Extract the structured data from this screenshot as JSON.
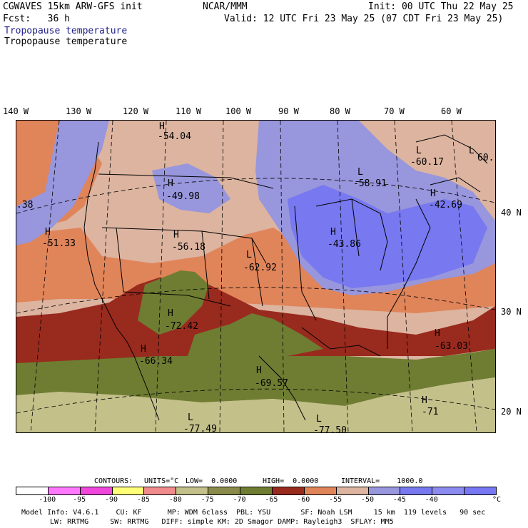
{
  "header": {
    "model": "CGWAVES 15km ARW-GFS init",
    "org": "NCAR/MMM",
    "init": "Init: 00 UTC Thu 22 May 25",
    "fcst": "Fcst:   36 h",
    "valid": "Valid: 12 UTC Fri 23 May 25 (07 CDT Fri 23 May 25)",
    "field_colored": "Tropopause temperature",
    "field_contour": "Tropopause temperature"
  },
  "lon_labels": [
    "140 W",
    "130 W",
    "120 W",
    "110 W",
    "100 W",
    "90 W",
    "80 W",
    "70 W",
    "60 W"
  ],
  "lat_labels": [
    "40 N",
    "30 N",
    "20 N"
  ],
  "centers": [
    {
      "type": "H",
      "value": "-54.04"
    },
    {
      "type": "H",
      "value": "-49.98"
    },
    {
      "type": "H",
      "value": "-51.33"
    },
    {
      "type": "H",
      "value": "-56.18"
    },
    {
      "type": "L",
      "value": "-62.92"
    },
    {
      "type": "H",
      "value": "-72.42"
    },
    {
      "type": "H",
      "value": "-66.34"
    },
    {
      "type": "H",
      "value": "-69.57"
    },
    {
      "type": "L",
      "value": "-77.49"
    },
    {
      "type": "L",
      "value": "-77.50"
    },
    {
      "type": "L",
      "value": "-58.91"
    },
    {
      "type": "L",
      "value": "-60.17"
    },
    {
      "type": "H",
      "value": "-42.69"
    },
    {
      "type": "H",
      "value": "-43.86"
    },
    {
      "type": "H",
      "value": "-63.03"
    },
    {
      "type": "H",
      "value": "-71"
    },
    {
      "type": "",
      "value": ".38"
    },
    {
      "type": "L",
      "value": "60."
    }
  ],
  "contour_info": {
    "contours": "CONTOURS:",
    "units": "UNITS=°C",
    "low": "LOW=  0.0000",
    "high": "HIGH=  0.0000",
    "interval": "INTERVAL=    1000.0"
  },
  "colorbar": {
    "colors": [
      "#ffffff",
      "#ff78ff",
      "#f046dc",
      "#ffff78",
      "#f08c8c",
      "#c4c08a",
      "#8a8b4a",
      "#6e7d32",
      "#992a1e",
      "#e0845a",
      "#dcb4a0",
      "#9896dc",
      "#7878f0",
      "#8c8cf0",
      "#7878f5"
    ],
    "ticks": [
      "-100",
      "-95",
      "-90",
      "-85",
      "-80",
      "-75",
      "-70",
      "-65",
      "-60",
      "-55",
      "-50",
      "-45",
      "-40"
    ],
    "unit": "°C"
  },
  "footer": {
    "line1": "Model Info: V4.6.1    CU: KF      MP: WDM 6class  PBL: YSU       SF: Noah LSM     15 km  119 levels   90 sec",
    "line2": "LW: RRTMG     SW: RRTMG   DIFF: simple KM: 2D Smagor DAMP: Rayleigh3  SFLAY: MM5"
  }
}
